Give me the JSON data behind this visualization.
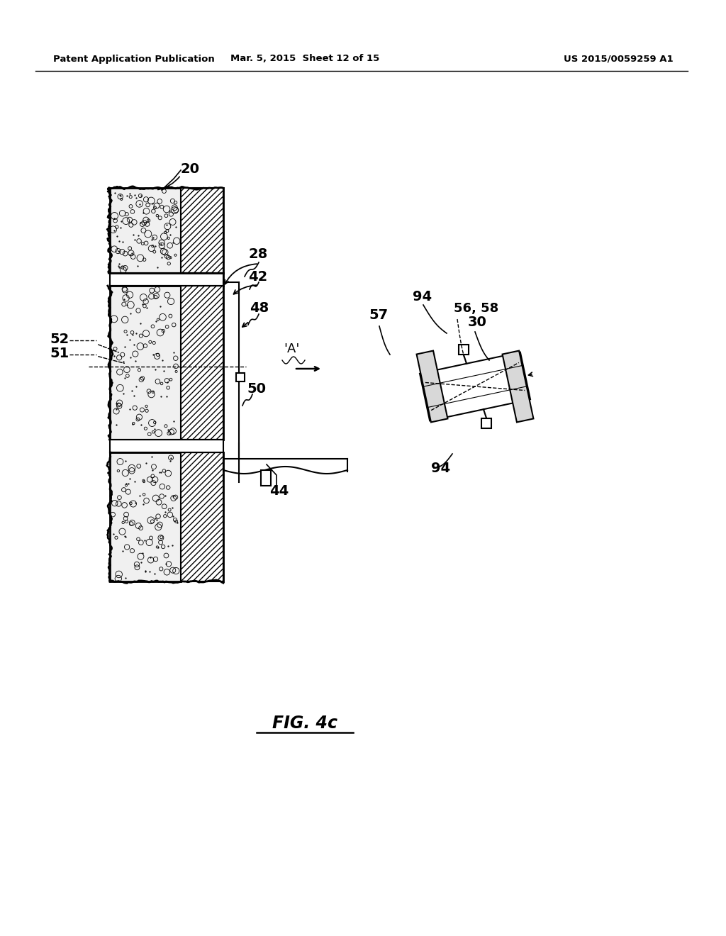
{
  "title_left": "Patent Application Publication",
  "title_mid": "Mar. 5, 2015  Sheet 12 of 15",
  "title_right": "US 2015/0059259 A1",
  "fig_label": "FIG. 4c",
  "background": "#ffffff"
}
